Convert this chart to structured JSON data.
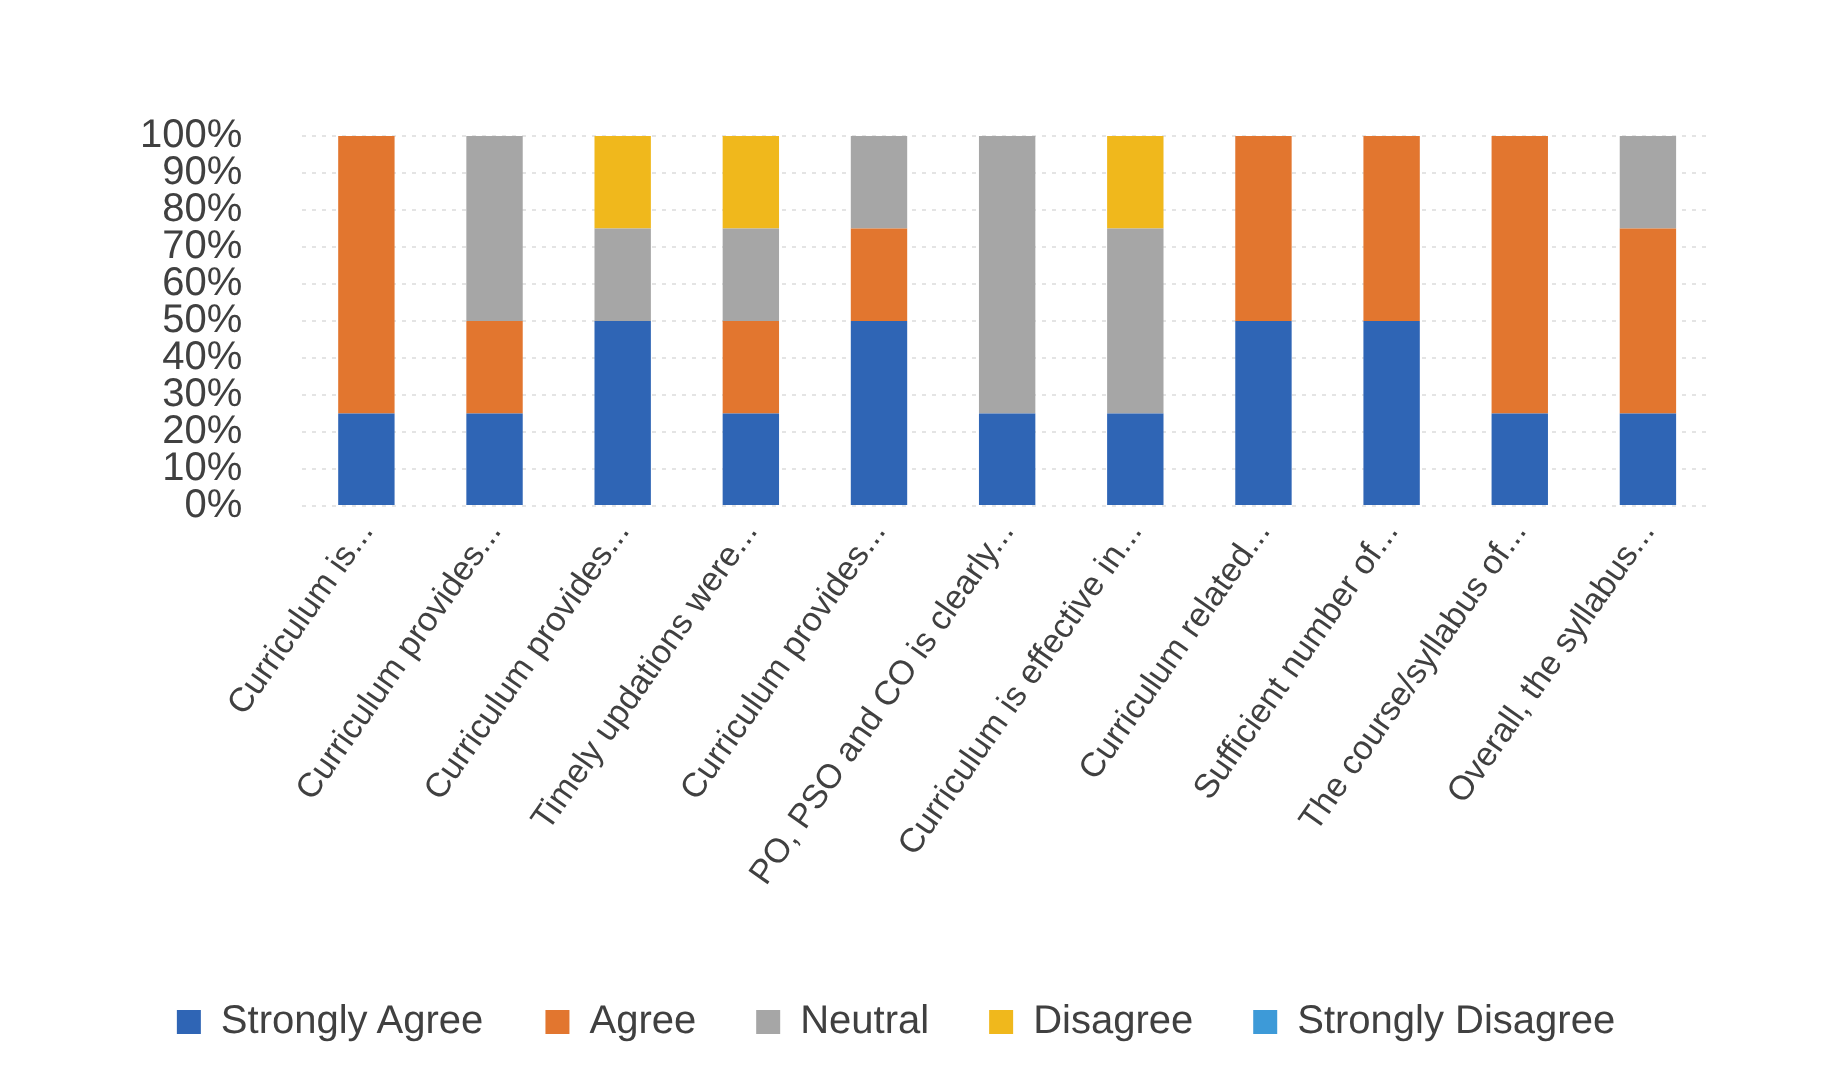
{
  "chart_data": {
    "type": "bar",
    "stacked": true,
    "categories": [
      "Curriculum is...",
      "Curriculum provides...",
      "Curriculum provides...",
      "Timely updations were...",
      "Curriculum provides...",
      "PO, PSO and CO is clearly...",
      "Curriculum is effective in...",
      "Curriculum related...",
      "Sufficient number of...",
      "The course/syllabus of...",
      "Overall, the syllabus..."
    ],
    "series": [
      {
        "name": "Strongly Agree",
        "color": "#2f65b5",
        "values": [
          25,
          25,
          50,
          25,
          50,
          25,
          25,
          50,
          50,
          25,
          25
        ]
      },
      {
        "name": "Agree",
        "color": "#e2762f",
        "values": [
          75,
          25,
          0,
          25,
          25,
          0,
          0,
          50,
          50,
          75,
          50
        ]
      },
      {
        "name": "Neutral",
        "color": "#a6a6a6",
        "values": [
          0,
          50,
          25,
          25,
          25,
          75,
          50,
          0,
          0,
          0,
          25
        ]
      },
      {
        "name": "Disagree",
        "color": "#f0b81c",
        "values": [
          0,
          0,
          25,
          25,
          0,
          0,
          25,
          0,
          0,
          0,
          0
        ]
      },
      {
        "name": "Strongly Disagree",
        "color": "#3d9ad8",
        "values": [
          0,
          0,
          0,
          0,
          0,
          0,
          0,
          0,
          0,
          0,
          0
        ]
      }
    ],
    "ylim": [
      0,
      100
    ],
    "yticks": [
      {
        "value": 0,
        "label": "0%"
      },
      {
        "value": 10,
        "label": "10%"
      },
      {
        "value": 20,
        "label": "20%"
      },
      {
        "value": 30,
        "label": "30%"
      },
      {
        "value": 40,
        "label": "40%"
      },
      {
        "value": 50,
        "label": "50%"
      },
      {
        "value": 60,
        "label": "60%"
      },
      {
        "value": 70,
        "label": "70%"
      },
      {
        "value": 80,
        "label": "80%"
      },
      {
        "value": 90,
        "label": "90%"
      },
      {
        "value": 100,
        "label": "100%"
      }
    ],
    "grid": "y",
    "legend": "bottom"
  }
}
